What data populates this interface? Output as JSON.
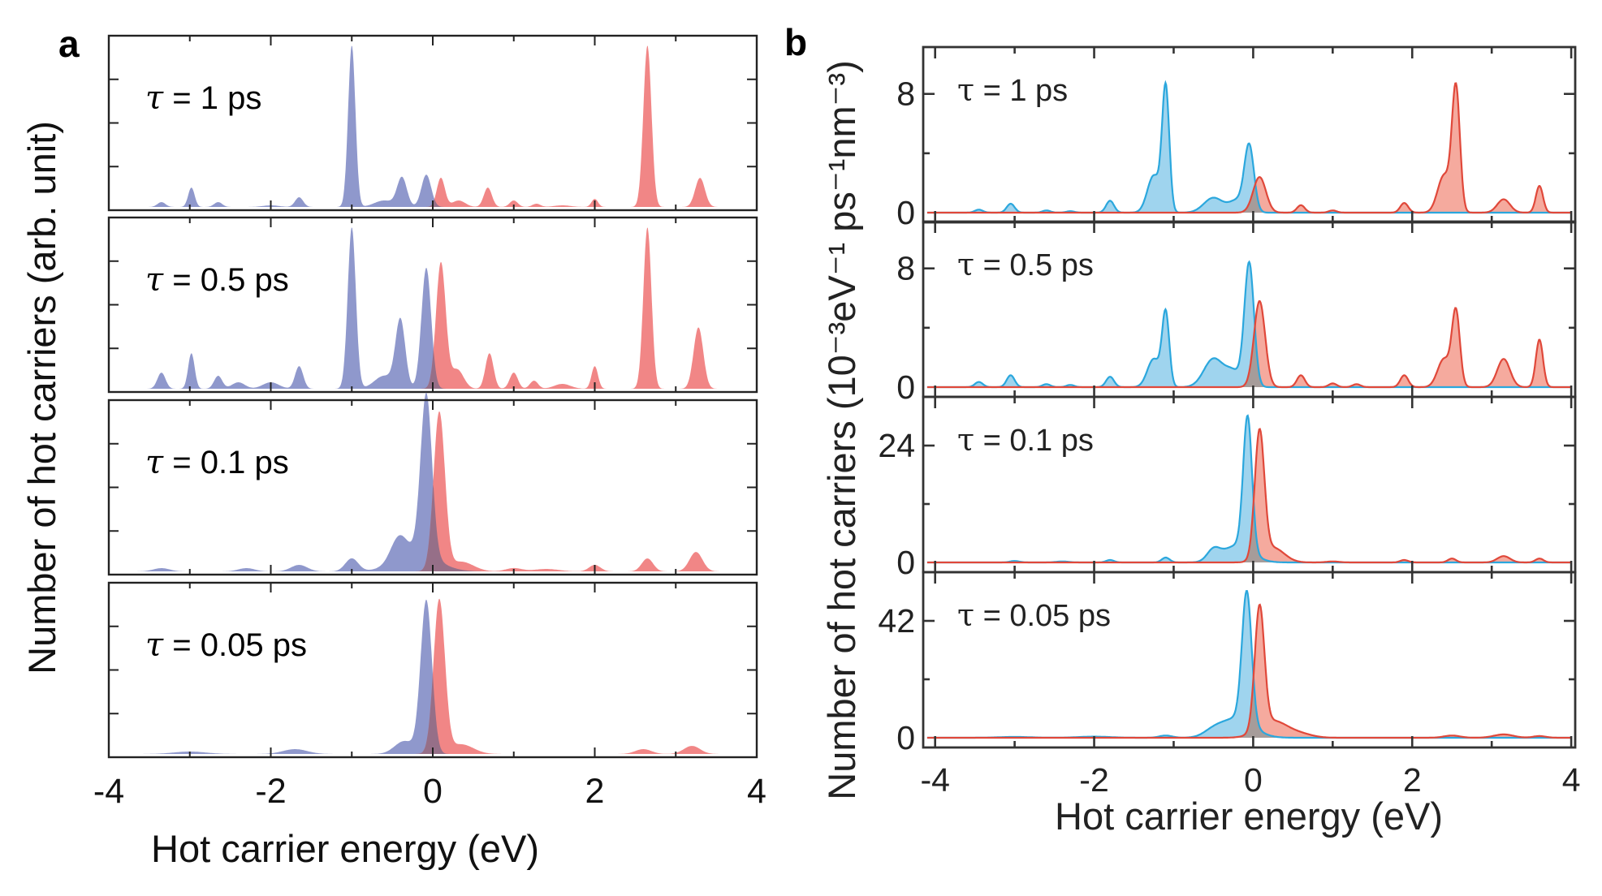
{
  "colors": {
    "holes_a": "#8f98cc",
    "electrons_a": "#f08080",
    "overlap_a": "#7a6a8a",
    "holes_b_fill": "#9fd4ee",
    "holes_b_line": "#2ba7dd",
    "electrons_b_fill": "#f4a193",
    "electrons_b_line": "#e0483a",
    "overlap_b": "#9a9a9a"
  },
  "chart_data": [
    {
      "id": "a",
      "panel_label": "a",
      "type": "area",
      "xlabel": "Hot carrier energy (eV)",
      "ylabel": "Number of hot carriers (arb. unit)",
      "xlim": [
        -4,
        4
      ],
      "xticks": [
        -4,
        -2,
        0,
        2,
        4
      ],
      "xtick_labels": [
        "-4",
        "-2",
        "0",
        "2",
        "4"
      ],
      "subplots": [
        {
          "tau_symbol": "τ",
          "tau_value": "= 1 ps",
          "ylim": [
            0,
            1
          ],
          "series": [
            {
              "role": "holes",
              "peaks": [
                [
                  -1.0,
                  1.0,
                  0.045
                ],
                [
                  -0.38,
                  0.18,
                  0.06
                ],
                [
                  -0.08,
                  0.2,
                  0.06
                ],
                [
                  -0.6,
                  0.04,
                  0.12
                ],
                [
                  -1.65,
                  0.06,
                  0.05
                ],
                [
                  -2.65,
                  0.03,
                  0.05
                ],
                [
                  -2.98,
                  0.12,
                  0.04
                ],
                [
                  -3.35,
                  0.03,
                  0.05
                ],
                [
                  -2.0,
                  0.01,
                  0.1
                ]
              ]
            },
            {
              "role": "electrons",
              "peaks": [
                [
                  2.65,
                  1.0,
                  0.05
                ],
                [
                  0.1,
                  0.18,
                  0.05
                ],
                [
                  0.32,
                  0.04,
                  0.08
                ],
                [
                  0.68,
                  0.12,
                  0.05
                ],
                [
                  1.0,
                  0.04,
                  0.05
                ],
                [
                  1.28,
                  0.02,
                  0.05
                ],
                [
                  2.0,
                  0.05,
                  0.04
                ],
                [
                  3.3,
                  0.18,
                  0.06
                ],
                [
                  1.6,
                  0.01,
                  0.1
                ]
              ]
            }
          ]
        },
        {
          "tau_symbol": "τ",
          "tau_value": "= 0.5 ps",
          "ylim": [
            0,
            1
          ],
          "series": [
            {
              "role": "holes",
              "peaks": [
                [
                  -1.0,
                  1.0,
                  0.05
                ],
                [
                  -0.4,
                  0.42,
                  0.06
                ],
                [
                  -0.08,
                  0.75,
                  0.06
                ],
                [
                  -0.6,
                  0.08,
                  0.12
                ],
                [
                  -1.65,
                  0.14,
                  0.05
                ],
                [
                  -2.65,
                  0.08,
                  0.05
                ],
                [
                  -2.98,
                  0.22,
                  0.04
                ],
                [
                  -3.35,
                  0.1,
                  0.05
                ],
                [
                  -2.0,
                  0.04,
                  0.1
                ],
                [
                  -2.4,
                  0.04,
                  0.08
                ]
              ]
            },
            {
              "role": "electrons",
              "peaks": [
                [
                  0.1,
                  0.78,
                  0.06
                ],
                [
                  0.3,
                  0.12,
                  0.08
                ],
                [
                  0.7,
                  0.22,
                  0.05
                ],
                [
                  1.0,
                  0.1,
                  0.05
                ],
                [
                  1.25,
                  0.05,
                  0.05
                ],
                [
                  2.0,
                  0.14,
                  0.04
                ],
                [
                  2.65,
                  1.0,
                  0.05
                ],
                [
                  3.28,
                  0.38,
                  0.06
                ],
                [
                  1.6,
                  0.03,
                  0.1
                ]
              ]
            }
          ]
        },
        {
          "tau_symbol": "τ",
          "tau_value": "= 0.1 ps",
          "ylim": [
            0,
            1
          ],
          "series": [
            {
              "role": "holes",
              "peaks": [
                [
                  -0.08,
                  1.0,
                  0.07
                ],
                [
                  -0.42,
                  0.14,
                  0.1
                ],
                [
                  -1.0,
                  0.08,
                  0.08
                ],
                [
                  -1.65,
                  0.04,
                  0.1
                ],
                [
                  -2.3,
                  0.02,
                  0.1
                ],
                [
                  -3.35,
                  0.02,
                  0.1
                ],
                [
                  -0.2,
                  0.12,
                  0.25
                ]
              ]
            },
            {
              "role": "electrons",
              "peaks": [
                [
                  0.08,
                  0.98,
                  0.07
                ],
                [
                  0.35,
                  0.06,
                  0.15
                ],
                [
                  2.0,
                  0.04,
                  0.07
                ],
                [
                  2.65,
                  0.08,
                  0.07
                ],
                [
                  3.25,
                  0.12,
                  0.08
                ],
                [
                  1.0,
                  0.02,
                  0.1
                ],
                [
                  1.4,
                  0.015,
                  0.15
                ]
              ]
            }
          ]
        },
        {
          "tau_symbol": "τ",
          "tau_value": "= 0.05 ps",
          "ylim": [
            0,
            1
          ],
          "series": [
            {
              "role": "holes",
              "peaks": [
                [
                  -0.08,
                  0.95,
                  0.07
                ],
                [
                  -0.35,
                  0.08,
                  0.12
                ],
                [
                  -1.7,
                  0.03,
                  0.15
                ],
                [
                  -3.0,
                  0.015,
                  0.2
                ]
              ]
            },
            {
              "role": "electrons",
              "peaks": [
                [
                  0.08,
                  0.95,
                  0.07
                ],
                [
                  0.35,
                  0.06,
                  0.15
                ],
                [
                  3.2,
                  0.05,
                  0.1
                ],
                [
                  2.6,
                  0.03,
                  0.1
                ]
              ]
            }
          ]
        }
      ]
    },
    {
      "id": "b",
      "panel_label": "b",
      "type": "area",
      "xlabel": "Hot carrier energy (eV)",
      "ylabel": "Number of hot carriers (10⁻³eV⁻¹ ps⁻¹nm⁻³)",
      "xlim": [
        -4.15,
        4.05
      ],
      "xticks": [
        -4,
        -2,
        0,
        2,
        4
      ],
      "xtick_labels": [
        "-4",
        "-2",
        "0",
        "2",
        "4"
      ],
      "subplots": [
        {
          "tau_symbol": "τ",
          "tau_value": "= 1 ps",
          "ylim": [
            0,
            10.5
          ],
          "yticks": [
            0,
            8
          ],
          "ytick_labels": [
            "0",
            "8"
          ],
          "series": [
            {
              "role": "holes",
              "peaks": [
                [
                  -1.1,
                  8.3,
                  0.045
                ],
                [
                  -1.25,
                  2.5,
                  0.08
                ],
                [
                  -0.05,
                  4.4,
                  0.06
                ],
                [
                  -0.5,
                  1.0,
                  0.12
                ],
                [
                  -0.2,
                  0.8,
                  0.1
                ],
                [
                  -1.8,
                  0.8,
                  0.05
                ],
                [
                  -3.05,
                  0.6,
                  0.05
                ],
                [
                  -3.45,
                  0.2,
                  0.05
                ],
                [
                  -2.6,
                  0.15,
                  0.05
                ],
                [
                  -2.3,
                  0.1,
                  0.05
                ]
              ]
            },
            {
              "role": "electrons",
              "peaks": [
                [
                  0.08,
                  2.4,
                  0.08
                ],
                [
                  0.6,
                  0.5,
                  0.05
                ],
                [
                  1.0,
                  0.15,
                  0.05
                ],
                [
                  1.9,
                  0.65,
                  0.05
                ],
                [
                  2.55,
                  8.3,
                  0.05
                ],
                [
                  2.4,
                  2.5,
                  0.08
                ],
                [
                  3.15,
                  0.9,
                  0.08
                ],
                [
                  3.6,
                  1.8,
                  0.045
                ]
              ]
            }
          ]
        },
        {
          "tau_symbol": "τ",
          "tau_value": "= 0.5 ps",
          "ylim": [
            0,
            10.5
          ],
          "yticks": [
            0,
            8
          ],
          "ytick_labels": [
            "0",
            "8"
          ],
          "series": [
            {
              "role": "holes",
              "peaks": [
                [
                  -1.1,
                  4.9,
                  0.045
                ],
                [
                  -1.25,
                  1.9,
                  0.08
                ],
                [
                  -0.05,
                  8.3,
                  0.06
                ],
                [
                  -0.5,
                  1.9,
                  0.12
                ],
                [
                  -0.25,
                  1.0,
                  0.1
                ],
                [
                  -1.8,
                  0.7,
                  0.05
                ],
                [
                  -3.05,
                  0.8,
                  0.05
                ],
                [
                  -3.45,
                  0.35,
                  0.05
                ],
                [
                  -2.6,
                  0.2,
                  0.05
                ],
                [
                  -2.3,
                  0.15,
                  0.05
                ]
              ]
            },
            {
              "role": "electrons",
              "peaks": [
                [
                  0.08,
                  5.8,
                  0.07
                ],
                [
                  0.6,
                  0.8,
                  0.05
                ],
                [
                  1.0,
                  0.25,
                  0.05
                ],
                [
                  1.3,
                  0.2,
                  0.05
                ],
                [
                  1.9,
                  0.8,
                  0.05
                ],
                [
                  2.55,
                  5.0,
                  0.05
                ],
                [
                  2.4,
                  1.9,
                  0.08
                ],
                [
                  3.15,
                  1.9,
                  0.08
                ],
                [
                  3.6,
                  3.2,
                  0.045
                ]
              ]
            }
          ]
        },
        {
          "tau_symbol": "τ",
          "tau_value": "= 0.1 ps",
          "ylim": [
            0,
            32
          ],
          "yticks": [
            0,
            24
          ],
          "ytick_labels": [
            "0",
            "24"
          ],
          "series": [
            {
              "role": "holes",
              "peaks": [
                [
                  -0.07,
                  27.5,
                  0.055
                ],
                [
                  -0.2,
                  3.5,
                  0.18
                ],
                [
                  -0.5,
                  2.2,
                  0.08
                ],
                [
                  -1.1,
                  1.0,
                  0.05
                ],
                [
                  -1.8,
                  0.5,
                  0.05
                ],
                [
                  -3.0,
                  0.3,
                  0.06
                ],
                [
                  -2.4,
                  0.2,
                  0.08
                ]
              ]
            },
            {
              "role": "electrons",
              "peaks": [
                [
                  0.08,
                  26.0,
                  0.06
                ],
                [
                  0.25,
                  3.0,
                  0.14
                ],
                [
                  1.9,
                  0.5,
                  0.05
                ],
                [
                  2.5,
                  0.8,
                  0.05
                ],
                [
                  3.15,
                  1.3,
                  0.08
                ],
                [
                  3.6,
                  0.8,
                  0.05
                ],
                [
                  1.0,
                  0.2,
                  0.08
                ]
              ]
            }
          ]
        },
        {
          "tau_symbol": "τ",
          "tau_value": "= 0.05 ps",
          "ylim": [
            0,
            56
          ],
          "yticks": [
            0,
            42
          ],
          "ytick_labels": [
            "0",
            "42"
          ],
          "series": [
            {
              "role": "holes",
              "peaks": [
                [
                  -0.08,
                  47.0,
                  0.06
                ],
                [
                  -0.2,
                  7.0,
                  0.2
                ],
                [
                  -0.5,
                  2.0,
                  0.12
                ],
                [
                  -1.1,
                  0.8,
                  0.08
                ],
                [
                  -2.0,
                  0.4,
                  0.2
                ],
                [
                  -3.0,
                  0.3,
                  0.2
                ]
              ]
            },
            {
              "role": "electrons",
              "peaks": [
                [
                  0.08,
                  44.0,
                  0.06
                ],
                [
                  0.25,
                  6.0,
                  0.18
                ],
                [
                  0.6,
                  1.2,
                  0.15
                ],
                [
                  2.5,
                  0.8,
                  0.1
                ],
                [
                  3.15,
                  1.2,
                  0.12
                ],
                [
                  3.6,
                  0.6,
                  0.08
                ]
              ]
            }
          ]
        }
      ]
    }
  ]
}
